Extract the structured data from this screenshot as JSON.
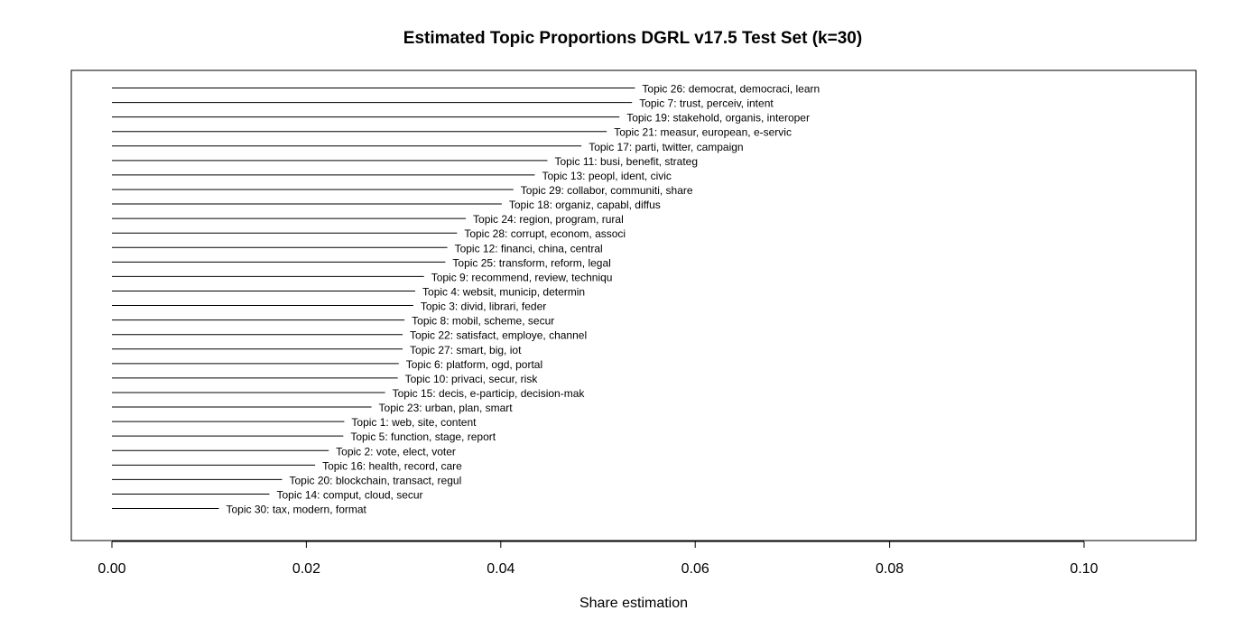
{
  "chart_data": {
    "type": "bar",
    "orientation": "horizontal",
    "title": "Estimated Topic Proportions DGRL v17.5 Test Set (k=30)",
    "xlabel": "Share estimation",
    "ylabel": "",
    "xlim": [
      0.0,
      0.11
    ],
    "xticks": [
      "0.00",
      "0.02",
      "0.04",
      "0.06",
      "0.08",
      "0.10"
    ],
    "grid": false,
    "categories": [
      "Topic 26: democrat, democraci, learn",
      "Topic 7: trust, perceiv, intent",
      "Topic 19: stakehold, organis, interoper",
      "Topic 21: measur, european, e-servic",
      "Topic 17: parti, twitter, campaign",
      "Topic 11: busi, benefit, strateg",
      "Topic 13: peopl, ident, civic",
      "Topic 29: collabor, communiti, share",
      "Topic 18: organiz, capabl, diffus",
      "Topic 24: region, program, rural",
      "Topic 28: corrupt, econom, associ",
      "Topic 12: financi, china, central",
      "Topic 25: transform, reform, legal",
      "Topic 9: recommend, review, techniqu",
      "Topic 4: websit, municip, determin",
      "Topic 3: divid, librari, feder",
      "Topic 8: mobil, scheme, secur",
      "Topic 22: satisfact, employe, channel",
      "Topic 27: smart, big, iot",
      "Topic 6: platform, ogd, portal",
      "Topic 10: privaci, secur, risk",
      "Topic 15: decis, e-particip, decision-mak",
      "Topic 23: urban, plan, smart",
      "Topic 1: web, site, content",
      "Topic 5: function, stage, report",
      "Topic 2: vote, elect, voter",
      "Topic 16: health, record, care",
      "Topic 20: blockchain, transact, regul",
      "Topic 14: comput, cloud, secur",
      "Topic 30: tax, modern, format"
    ],
    "values": [
      0.0538,
      0.0535,
      0.0522,
      0.0509,
      0.0483,
      0.0448,
      0.0435,
      0.0413,
      0.0401,
      0.0364,
      0.0355,
      0.0345,
      0.0343,
      0.0321,
      0.0312,
      0.031,
      0.0301,
      0.0299,
      0.0299,
      0.0295,
      0.0294,
      0.0281,
      0.0267,
      0.0239,
      0.0238,
      0.0223,
      0.0209,
      0.0175,
      0.0162,
      0.011
    ]
  }
}
